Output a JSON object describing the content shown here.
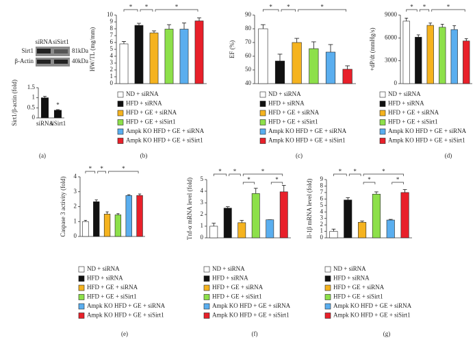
{
  "chart_data": [
    {
      "type": "bar",
      "label": "(a)",
      "ylabel": "Sirt1/β-actin (fold)",
      "categories": [
        "siRNA",
        "siSirt1"
      ],
      "values": [
        1.0,
        0.38
      ],
      "errors": [
        0.07,
        0.03
      ],
      "colors": [
        "#111111",
        "#111111"
      ],
      "ylim": [
        0,
        1.5
      ],
      "yticks": [
        0,
        0.5,
        1,
        1.5
      ],
      "annotations": [
        "*"
      ],
      "blot": {
        "lanes": [
          "siRNA",
          "siSirt1"
        ],
        "bands": [
          "Sirt1",
          "β-Actin"
        ],
        "sizes": [
          "81kDa",
          "40kDa"
        ]
      }
    },
    {
      "type": "bar",
      "label": "(b)",
      "ylabel": "HW/TL (mg/mm)",
      "categories": [
        "ND + siRNA",
        "HFD + siRNA",
        "HFD + GE + siRNA",
        "HFD + GE + siSirt1",
        "Ampk KO HFD + GE + siRNA",
        "Ampk KO HFD + GE + siSirt1"
      ],
      "values": [
        5.8,
        8.5,
        7.4,
        7.95,
        7.95,
        9.15
      ],
      "errors": [
        0.35,
        0.3,
        0.3,
        0.65,
        0.9,
        0.45
      ],
      "colors": [
        "#ffffff",
        "#111111",
        "#f5b31f",
        "#8de04a",
        "#5aaeef",
        "#e8202a"
      ],
      "ylim": [
        0,
        10
      ],
      "yticks": [
        0,
        1,
        2,
        3,
        4,
        5,
        6,
        7,
        8,
        9,
        10
      ],
      "annotations": [
        "*",
        "*",
        "*"
      ]
    },
    {
      "type": "bar",
      "label": "(c)",
      "ylabel": "EF (%)",
      "categories": [
        "ND + siRNA",
        "HFD + siRNA",
        "HFD + GE + siRNA",
        "HFD + GE + siSirt1",
        "Ampk KO HFD + GE + siRNA",
        "Ampk KO HFD + GE + siSirt1"
      ],
      "values": [
        80,
        56.5,
        70,
        65.5,
        63,
        50.5
      ],
      "errors": [
        3,
        5,
        3,
        5,
        5.5,
        2.5
      ],
      "colors": [
        "#ffffff",
        "#111111",
        "#f5b31f",
        "#8de04a",
        "#5aaeef",
        "#e8202a"
      ],
      "ylim": [
        40,
        90
      ],
      "yticks": [
        40,
        50,
        60,
        70,
        80,
        90
      ],
      "annotations": [
        "*",
        "*",
        "*"
      ]
    },
    {
      "type": "bar",
      "label": "(d)",
      "ylabel": "+dP/dt (mmHg/s)",
      "categories": [
        "ND + siRNA",
        "HFD + siRNA",
        "HFD + GE + siRNA",
        "HFD + GE + siSirt1",
        "Ampk KO HFD + GE + siRNA",
        "Ampk KO HFD + GE + siSirt1"
      ],
      "values": [
        8200,
        6100,
        7650,
        7400,
        7100,
        5600
      ],
      "errors": [
        400,
        300,
        300,
        400,
        500,
        300
      ],
      "colors": [
        "#ffffff",
        "#111111",
        "#f5b31f",
        "#8de04a",
        "#5aaeef",
        "#e8202a"
      ],
      "ylim": [
        0,
        9000
      ],
      "yticks": [
        0,
        3000,
        6000,
        9000
      ],
      "annotations": [
        "*",
        "*",
        "*"
      ]
    },
    {
      "type": "bar",
      "label": "(e)",
      "ylabel": "Caspase 3 activity (fold)",
      "categories": [
        "ND + siRNA",
        "HFD + siRNA",
        "HFD + GE + siRNA",
        "HFD + GE + siSirt1",
        "Ampk KO HFD + GE + siRNA",
        "Ampk KO HFD + GE + siSirt1"
      ],
      "values": [
        1.0,
        2.33,
        1.5,
        1.45,
        2.75,
        2.75
      ],
      "errors": [
        0.08,
        0.12,
        0.15,
        0.08,
        0.05,
        0.1
      ],
      "colors": [
        "#ffffff",
        "#111111",
        "#f5b31f",
        "#8de04a",
        "#5aaeef",
        "#e8202a"
      ],
      "ylim": [
        0,
        4
      ],
      "yticks": [
        0,
        1,
        2,
        3,
        4
      ],
      "annotations": [
        "*",
        "*",
        "*"
      ]
    },
    {
      "type": "bar",
      "label": "(f)",
      "ylabel": "Tnf-α mRNA level (fold)",
      "categories": [
        "ND + siRNA",
        "HFD + siRNA",
        "HFD + GE + siRNA",
        "HFD + GE + siSirt1",
        "Ampk KO HFD + GE + siRNA",
        "Ampk KO HFD + GE + siSirt1"
      ],
      "values": [
        1.0,
        2.55,
        1.3,
        3.8,
        1.55,
        3.95
      ],
      "errors": [
        0.25,
        0.12,
        0.2,
        0.45,
        0,
        0.55
      ],
      "colors": [
        "#ffffff",
        "#111111",
        "#f5b31f",
        "#8de04a",
        "#5aaeef",
        "#e8202a"
      ],
      "ylim": [
        0,
        5
      ],
      "yticks": [
        0,
        1,
        2,
        3,
        4,
        5
      ],
      "annotations": [
        "*",
        "*",
        "*",
        "*",
        "*"
      ]
    },
    {
      "type": "bar",
      "label": "(g)",
      "ylabel": "Il-1β mRNA level (fold)",
      "categories": [
        "ND + siRNA",
        "HFD + siRNA",
        "HFD + GE + siRNA",
        "HFD + GE + siSirt1",
        "Ampk KO HFD + GE + siRNA",
        "Ampk KO HFD + GE + siSirt1"
      ],
      "values": [
        1.0,
        5.85,
        2.4,
        6.75,
        2.75,
        7.0
      ],
      "errors": [
        0.35,
        0.35,
        0.2,
        0.35,
        0.1,
        0.45
      ],
      "colors": [
        "#ffffff",
        "#111111",
        "#f5b31f",
        "#8de04a",
        "#5aaeef",
        "#e8202a"
      ],
      "ylim": [
        0,
        9
      ],
      "yticks": [
        0,
        1,
        2,
        3,
        4,
        5,
        6,
        7,
        8,
        9
      ],
      "annotations": [
        "*",
        "*",
        "*",
        "*",
        "*"
      ]
    }
  ]
}
